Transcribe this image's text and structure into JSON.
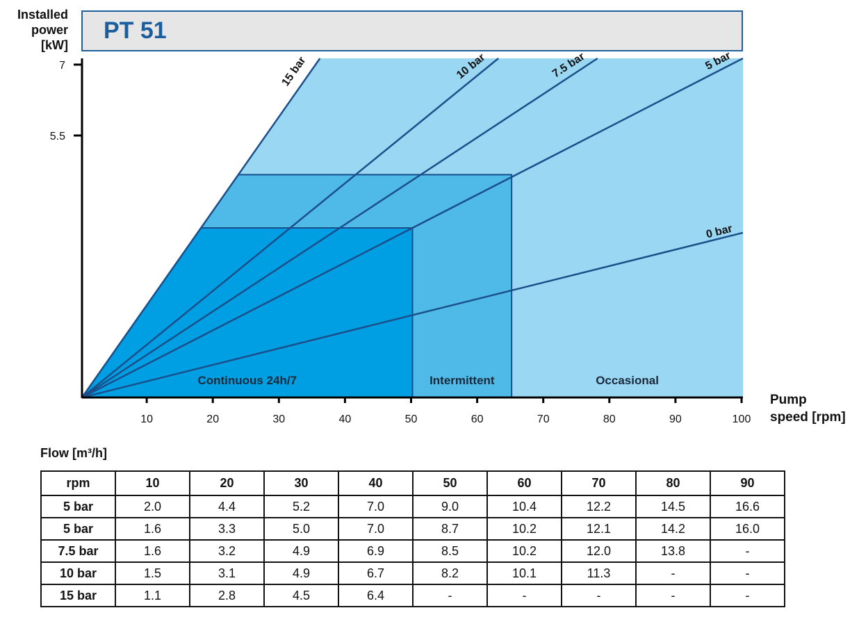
{
  "title": "PT 51",
  "y_axis_label": [
    "Installed",
    "power",
    "[kW]"
  ],
  "x_axis_label": [
    "Pump",
    "speed [rpm]"
  ],
  "chart_data": {
    "type": "line",
    "title": "PT 51",
    "xlabel": "Pump speed [rpm]",
    "ylabel": "Installed power [kW]",
    "xlim": [
      0,
      100
    ],
    "ylim": [
      0,
      7
    ],
    "x_ticks": [
      "10",
      "20",
      "30",
      "40",
      "50",
      "60",
      "70",
      "80",
      "90",
      "100"
    ],
    "y_ticks": [
      "7",
      "5.5"
    ],
    "series": [
      {
        "name": "15 bar",
        "x": [
          0,
          36
        ],
        "y": [
          0,
          7
        ]
      },
      {
        "name": "10 bar",
        "x": [
          0,
          63
        ],
        "y": [
          0,
          7
        ]
      },
      {
        "name": "7.5 bar",
        "x": [
          0,
          78
        ],
        "y": [
          0,
          7
        ]
      },
      {
        "name": "5 bar",
        "x": [
          0,
          100
        ],
        "y": [
          0,
          7
        ]
      },
      {
        "name": "0 bar",
        "x": [
          0,
          100
        ],
        "y": [
          0,
          3.4
        ]
      }
    ],
    "regions": [
      {
        "label": "Continuous 24h/7",
        "x": [
          0,
          50
        ],
        "y_max": 3.5
      },
      {
        "label": "Intermittent",
        "x": [
          50,
          65
        ],
        "y_max": 4.6
      },
      {
        "label": "Occasional",
        "x": [
          65,
          100
        ],
        "y_max": 7
      }
    ],
    "colors": {
      "continuous": "#009fe3",
      "intermittent": "#4fb9e8",
      "occasional": "#9ad7f3",
      "line": "#1a4f8a"
    }
  },
  "table": {
    "caption": "Flow [m³/h]",
    "header": [
      "rpm",
      "10",
      "20",
      "30",
      "40",
      "50",
      "60",
      "70",
      "80",
      "90"
    ],
    "rows": [
      [
        "5 bar",
        "2.0",
        "4.4",
        "5.2",
        "7.0",
        "9.0",
        "10.4",
        "12.2",
        "14.5",
        "16.6"
      ],
      [
        "5 bar",
        "1.6",
        "3.3",
        "5.0",
        "7.0",
        "8.7",
        "10.2",
        "12.1",
        "14.2",
        "16.0"
      ],
      [
        "7.5 bar",
        "1.6",
        "3.2",
        "4.9",
        "6.9",
        "8.5",
        "10.2",
        "12.0",
        "13.8",
        "-"
      ],
      [
        "10 bar",
        "1.5",
        "3.1",
        "4.9",
        "6.7",
        "8.2",
        "10.1",
        "11.3",
        "-",
        "-"
      ],
      [
        "15 bar",
        "1.1",
        "2.8",
        "4.5",
        "6.4",
        "-",
        "-",
        "-",
        "-",
        "-"
      ]
    ]
  }
}
